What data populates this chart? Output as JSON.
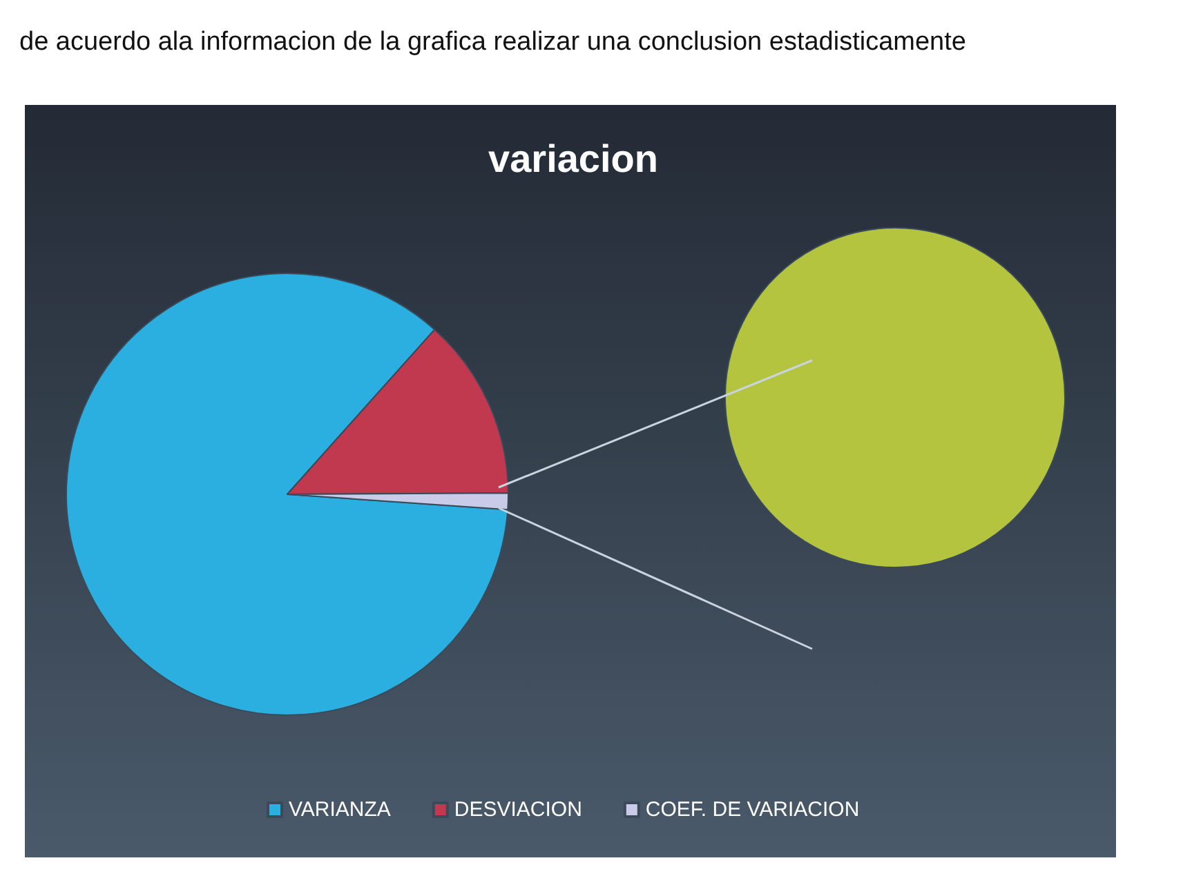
{
  "chart_data": [
    {
      "type": "pie",
      "title": "variacion",
      "annotations": [
        "de acuerdo ala informacion de la grafica realizar una conclusion estadisticamente"
      ],
      "categories": [
        "VARIANZA",
        "DESVIACION",
        "COEF. DE VARIACION"
      ],
      "values": [
        85.5,
        13.3,
        1.2
      ],
      "colors": [
        "#2aafe0",
        "#c0394f",
        "#c9cbe8"
      ],
      "legend": "bottom"
    },
    {
      "type": "pie",
      "categories": [
        null
      ],
      "values": [
        100
      ],
      "colors": [
        "#b4c43f"
      ]
    }
  ]
}
